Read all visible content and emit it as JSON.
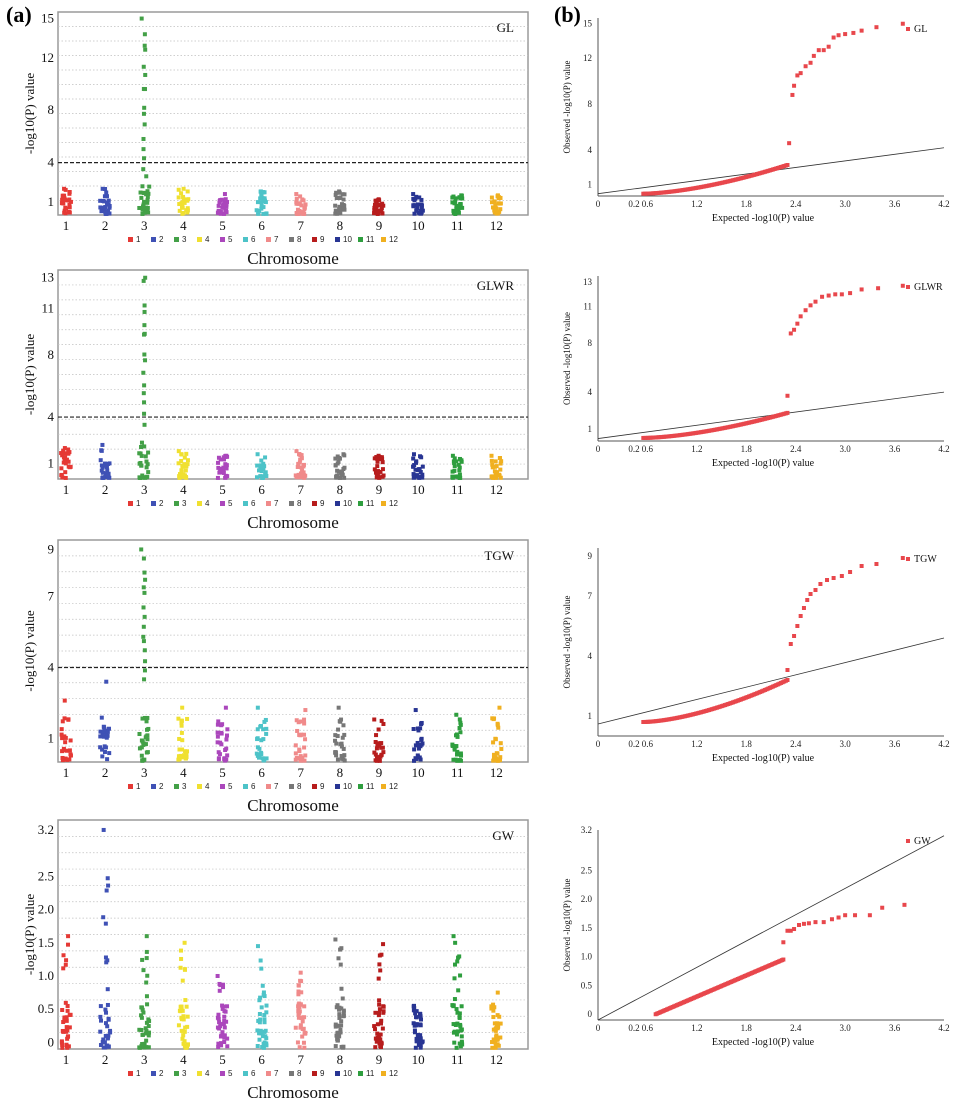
{
  "panel_labels": {
    "a": "(a)",
    "b": "(b)"
  },
  "manhattan_common": {
    "ylabel": "-log10(P) value",
    "xlabel": "Chromosome",
    "chromosomes": [
      "1",
      "2",
      "3",
      "4",
      "5",
      "6",
      "7",
      "8",
      "9",
      "10",
      "11",
      "12"
    ],
    "legend_labels": [
      "1",
      "2",
      "3",
      "4",
      "5",
      "6",
      "7",
      "8",
      "9",
      "10",
      "11",
      "12"
    ]
  },
  "qq_common": {
    "ylabel": "Observed -log10(P) value",
    "xlabel": "Expected -log10(P) value",
    "xticks": [
      "0",
      "0.2",
      "0.6",
      "1.2",
      "1.8",
      "2.4",
      "3.0",
      "3.6",
      "4.2"
    ]
  },
  "colors": {
    "chromosomes": [
      "#e53935",
      "#3f51b5",
      "#43a047",
      "#f0e030",
      "#ab47bc",
      "#4dc3c8",
      "#f08a8a",
      "#777777",
      "#b71c1c",
      "#283593",
      "#2e9e3e",
      "#f0b020"
    ],
    "qq_points": "#e8474c",
    "threshold": "#222222",
    "grid": "#c0c0c0"
  },
  "chart_data": [
    {
      "type": "scatter",
      "title": "GL",
      "ylabel": "-log10(P) value",
      "xlabel": "Chromosome",
      "ylim": [
        0,
        15.5
      ],
      "yticks": [
        "15",
        "12",
        "8",
        "4",
        "1"
      ],
      "threshold": 4,
      "grid": true,
      "legend_position": "bottom",
      "chromosome_peaks": [
        2.0,
        2.0,
        15.0,
        2.0,
        1.6,
        1.8,
        1.6,
        1.8,
        1.2,
        1.6,
        1.5,
        1.5
      ]
    },
    {
      "type": "scatter",
      "title": "GLWR",
      "ylabel": "-log10(P) value",
      "xlabel": "Chromosome",
      "ylim": [
        0,
        13.5
      ],
      "yticks": [
        "13",
        "11",
        "8",
        "4",
        "1"
      ],
      "threshold": 4,
      "grid": true,
      "legend_position": "bottom",
      "chromosome_peaks": [
        2.0,
        2.2,
        13.0,
        1.8,
        1.5,
        1.6,
        1.8,
        1.6,
        1.5,
        1.6,
        1.5,
        1.5
      ]
    },
    {
      "type": "scatter",
      "title": "TGW",
      "ylabel": "-log10(P) value",
      "xlabel": "Chromosome",
      "ylim": [
        0,
        9.4
      ],
      "yticks": [
        "9",
        "7",
        "4",
        "1"
      ],
      "threshold": 4,
      "grid": true,
      "legend_position": "bottom",
      "chromosome_peaks": [
        2.6,
        3.4,
        9.0,
        2.3,
        2.3,
        2.3,
        2.2,
        2.3,
        1.8,
        2.2,
        2.0,
        2.3
      ]
    },
    {
      "type": "scatter",
      "title": "GW",
      "ylabel": "-log10(P) value",
      "xlabel": "Chromosome",
      "ylim": [
        -0.1,
        3.35
      ],
      "yticks": [
        "3.2",
        "2.5",
        "2.0",
        "1.5",
        "1.0",
        "0.5",
        "0"
      ],
      "grid": true,
      "legend_position": "bottom",
      "chromosome_peaks": [
        1.6,
        3.2,
        1.6,
        1.5,
        1.0,
        1.45,
        1.05,
        1.55,
        1.48,
        0.55,
        1.6,
        0.75
      ]
    },
    {
      "type": "scatter",
      "title": "GL",
      "xlabel": "Expected -log10(P) value",
      "ylabel": "Observed -log10(P) value",
      "xlim": [
        0,
        4.2
      ],
      "ylim": [
        0,
        15.5
      ],
      "yticks": [
        "15",
        "12",
        "8",
        "4",
        "1"
      ],
      "diagonal": [
        [
          0,
          0.2
        ],
        [
          4.2,
          4.2
        ]
      ],
      "bend_x": 2.3,
      "low_range": [
        0.2,
        2.7
      ],
      "tail_points": [
        [
          2.32,
          4.6
        ],
        [
          2.36,
          8.8
        ],
        [
          2.38,
          9.6
        ],
        [
          2.42,
          10.5
        ],
        [
          2.46,
          10.7
        ],
        [
          2.52,
          11.3
        ],
        [
          2.58,
          11.6
        ],
        [
          2.62,
          12.2
        ],
        [
          2.68,
          12.7
        ],
        [
          2.74,
          12.7
        ],
        [
          2.8,
          13.0
        ],
        [
          2.86,
          13.8
        ],
        [
          2.92,
          14.0
        ],
        [
          3.0,
          14.1
        ],
        [
          3.1,
          14.2
        ],
        [
          3.2,
          14.4
        ],
        [
          3.38,
          14.7
        ],
        [
          3.7,
          15.0
        ]
      ]
    },
    {
      "type": "scatter",
      "title": "GLWR",
      "xlabel": "Expected -log10(P) value",
      "ylabel": "Observed -log10(P) value",
      "xlim": [
        0,
        4.2
      ],
      "ylim": [
        0,
        13.5
      ],
      "yticks": [
        "13",
        "11",
        "8",
        "4",
        "1"
      ],
      "diagonal": [
        [
          0,
          0.2
        ],
        [
          4.2,
          4.0
        ]
      ],
      "bend_x": 2.3,
      "low_range": [
        0.25,
        2.3
      ],
      "tail_points": [
        [
          2.3,
          3.7
        ],
        [
          2.34,
          8.8
        ],
        [
          2.38,
          9.1
        ],
        [
          2.42,
          9.6
        ],
        [
          2.46,
          10.2
        ],
        [
          2.52,
          10.7
        ],
        [
          2.58,
          11.1
        ],
        [
          2.64,
          11.4
        ],
        [
          2.72,
          11.8
        ],
        [
          2.8,
          11.9
        ],
        [
          2.88,
          12.0
        ],
        [
          2.96,
          12.0
        ],
        [
          3.06,
          12.1
        ],
        [
          3.2,
          12.4
        ],
        [
          3.4,
          12.5
        ],
        [
          3.7,
          12.7
        ]
      ]
    },
    {
      "type": "scatter",
      "title": "TGW",
      "xlabel": "Expected -log10(P) value",
      "ylabel": "Observed -log10(P) value",
      "xlim": [
        0,
        4.2
      ],
      "ylim": [
        0,
        9.4
      ],
      "yticks": [
        "9",
        "7",
        "4",
        "1"
      ],
      "diagonal": [
        [
          0,
          0.6
        ],
        [
          4.2,
          4.9
        ]
      ],
      "bend_x": 2.3,
      "low_range": [
        0.7,
        2.8
      ],
      "tail_points": [
        [
          2.3,
          3.3
        ],
        [
          2.34,
          4.6
        ],
        [
          2.38,
          5.0
        ],
        [
          2.42,
          5.5
        ],
        [
          2.46,
          6.0
        ],
        [
          2.5,
          6.4
        ],
        [
          2.54,
          6.8
        ],
        [
          2.58,
          7.1
        ],
        [
          2.64,
          7.3
        ],
        [
          2.7,
          7.6
        ],
        [
          2.78,
          7.8
        ],
        [
          2.86,
          7.9
        ],
        [
          2.96,
          8.0
        ],
        [
          3.06,
          8.2
        ],
        [
          3.2,
          8.5
        ],
        [
          3.38,
          8.6
        ],
        [
          3.7,
          8.9
        ]
      ]
    },
    {
      "type": "scatter",
      "title": "GW",
      "xlabel": "Expected -log10(P) value",
      "ylabel": "Observed -log10(P) value",
      "xlim": [
        0,
        4.2
      ],
      "ylim": [
        -0.1,
        3.2
      ],
      "yticks": [
        "3.2",
        "2.5",
        "2.0",
        "1.5",
        "1.0",
        "0.5",
        "0"
      ],
      "diagonal": [
        [
          0,
          -0.1
        ],
        [
          4.2,
          3.1
        ]
      ],
      "bend_x": 2.25,
      "low_range": [
        0.0,
        0.95
      ],
      "tail_points": [
        [
          2.25,
          1.25
        ],
        [
          2.3,
          1.45
        ],
        [
          2.34,
          1.45
        ],
        [
          2.38,
          1.48
        ],
        [
          2.44,
          1.55
        ],
        [
          2.5,
          1.57
        ],
        [
          2.56,
          1.58
        ],
        [
          2.64,
          1.6
        ],
        [
          2.74,
          1.6
        ],
        [
          2.84,
          1.65
        ],
        [
          2.92,
          1.68
        ],
        [
          3.0,
          1.72
        ],
        [
          3.12,
          1.72
        ],
        [
          3.3,
          1.72
        ],
        [
          3.45,
          1.85
        ],
        [
          3.72,
          1.9
        ]
      ]
    }
  ]
}
